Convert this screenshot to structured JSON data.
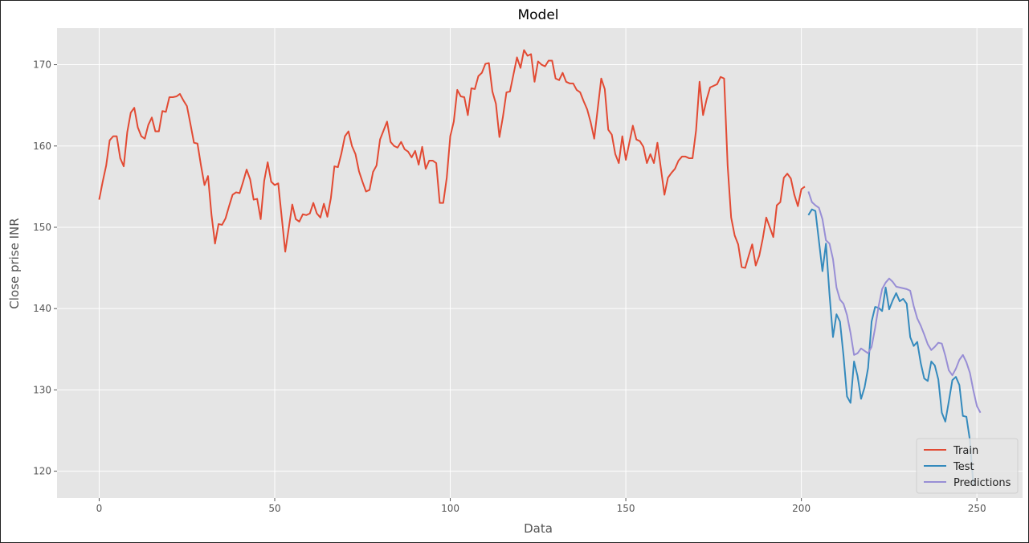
{
  "chart_data": {
    "type": "line",
    "title": "Model",
    "xlabel": "Data",
    "ylabel": "Close prise INR",
    "xlim": [
      -12,
      263
    ],
    "ylim": [
      116.7,
      174.5
    ],
    "x_ticks": [
      0,
      50,
      100,
      150,
      200,
      250
    ],
    "y_ticks": [
      120,
      130,
      140,
      150,
      160,
      170
    ],
    "grid": true,
    "legend_position": "bottom-right",
    "colors": {
      "background": "#e5e5e5",
      "grid": "#ffffff",
      "train": "#e24a33",
      "test": "#348abd",
      "predictions": "#988ed5"
    },
    "series": [
      {
        "name": "Train",
        "x_start": 0,
        "values": [
          153.4,
          155.6,
          157.6,
          160.7,
          161.2,
          161.2,
          158.5,
          157.5,
          161.7,
          164.1,
          164.7,
          162.3,
          161.2,
          160.9,
          162.6,
          163.5,
          161.8,
          161.8,
          164.3,
          164.2,
          166.0,
          166.0,
          166.1,
          166.4,
          165.6,
          164.9,
          162.7,
          160.4,
          160.3,
          157.6,
          155.2,
          156.3,
          151.5,
          148.0,
          150.4,
          150.3,
          151.1,
          152.6,
          154.0,
          154.3,
          154.2,
          155.6,
          157.1,
          155.9,
          153.4,
          153.5,
          151.0,
          155.7,
          158.0,
          155.6,
          155.2,
          155.4,
          151.2,
          147.0,
          149.9,
          152.8,
          151.0,
          150.7,
          151.6,
          151.5,
          151.7,
          153.0,
          151.7,
          151.2,
          152.9,
          151.3,
          153.6,
          157.5,
          157.4,
          159.1,
          161.2,
          161.8,
          160.0,
          159.0,
          156.9,
          155.6,
          154.4,
          154.6,
          156.8,
          157.6,
          160.8,
          161.9,
          163.0,
          160.5,
          160.0,
          159.8,
          160.5,
          159.6,
          159.3,
          158.6,
          159.4,
          157.7,
          159.9,
          157.2,
          158.2,
          158.2,
          157.9,
          153.0,
          153.0,
          156.1,
          161.2,
          163.0,
          166.9,
          166.1,
          166.0,
          163.8,
          167.1,
          167.0,
          168.6,
          169.0,
          170.1,
          170.2,
          166.7,
          165.2,
          161.1,
          163.6,
          166.6,
          166.7,
          168.8,
          170.9,
          169.6,
          171.8,
          171.1,
          171.3,
          167.9,
          170.4,
          170.0,
          169.8,
          170.5,
          170.5,
          168.3,
          168.1,
          169.0,
          167.9,
          167.7,
          167.7,
          166.9,
          166.6,
          165.5,
          164.5,
          162.9,
          160.9,
          164.6,
          168.3,
          167.0,
          162.0,
          161.4,
          159.0,
          157.9,
          161.2,
          158.3,
          160.4,
          162.5,
          160.8,
          160.6,
          159.9,
          157.9,
          159.0,
          157.9,
          160.4,
          157.2,
          154.0,
          156.1,
          156.7,
          157.2,
          158.2,
          158.7,
          158.7,
          158.5,
          158.5,
          161.9,
          167.9,
          163.8,
          165.7,
          167.2,
          167.4,
          167.6,
          168.5,
          168.3,
          157.6,
          151.2,
          149.0,
          147.9,
          145.1,
          145.0,
          146.5,
          147.9,
          145.3,
          146.5,
          148.6,
          151.2,
          150.0,
          148.8,
          152.7,
          153.1,
          156.1,
          156.6,
          156.0,
          154.0,
          152.6,
          154.7,
          155.0
        ]
      },
      {
        "name": "Test",
        "x_start": 202,
        "values": [
          151.5,
          152.2,
          152.0,
          148.3,
          144.6,
          148.0,
          141.8,
          136.5,
          139.3,
          138.4,
          134.2,
          129.2,
          128.4,
          133.5,
          131.7,
          128.9,
          130.3,
          132.7,
          138.4,
          140.2,
          140.1,
          139.7,
          142.6,
          139.9,
          141.0,
          141.9,
          140.9,
          141.2,
          140.6,
          136.5,
          135.4,
          135.9,
          133.3,
          131.4,
          131.1,
          133.5,
          133.0,
          131.3,
          127.2,
          126.1,
          128.6,
          131.2,
          131.6,
          130.6,
          126.8,
          126.7,
          123.8,
          118.2
        ]
      },
      {
        "name": "Predictions",
        "x_start": 202,
        "values": [
          154.4,
          153.1,
          152.7,
          152.4,
          151.0,
          148.4,
          148.0,
          146.1,
          142.6,
          141.1,
          140.6,
          139.2,
          137.0,
          134.3,
          134.5,
          135.1,
          134.8,
          134.5,
          135.3,
          137.6,
          140.3,
          142.4,
          143.2,
          143.7,
          143.3,
          142.7,
          142.6,
          142.5,
          142.4,
          142.2,
          140.3,
          138.8,
          137.9,
          136.8,
          135.6,
          134.9,
          135.3,
          135.8,
          135.7,
          134.2,
          132.4,
          131.8,
          132.6,
          133.7,
          134.3,
          133.4,
          132.1,
          129.9,
          128.0,
          127.2
        ]
      }
    ]
  }
}
